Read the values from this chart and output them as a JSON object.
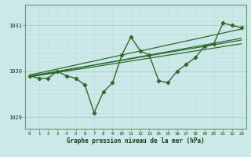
{
  "x": [
    0,
    1,
    2,
    3,
    4,
    5,
    6,
    7,
    8,
    9,
    10,
    11,
    12,
    13,
    14,
    15,
    16,
    17,
    18,
    19,
    20,
    21,
    22,
    23
  ],
  "main_line": [
    1029.9,
    1029.85,
    1029.85,
    1030.0,
    1029.9,
    1029.85,
    1029.7,
    1029.1,
    1029.55,
    1029.75,
    1030.35,
    1030.75,
    1030.45,
    1030.35,
    1029.8,
    1029.75,
    1030.0,
    1030.15,
    1030.3,
    1030.55,
    1030.6,
    1031.05,
    1031.0,
    1030.95
  ],
  "trend_lines": [
    [
      [
        0,
        23
      ],
      [
        1029.92,
        1030.92
      ]
    ],
    [
      [
        0,
        23
      ],
      [
        1029.88,
        1030.72
      ]
    ],
    [
      [
        0,
        23
      ],
      [
        1029.9,
        1030.68
      ]
    ],
    [
      [
        0,
        23
      ],
      [
        1029.88,
        1030.6
      ]
    ]
  ],
  "bg_color": "#cce8e8",
  "line_color": "#2d6a2d",
  "grid_major_color": "#aad4d4",
  "grid_minor_color": "#c0e0e0",
  "ylabel_ticks": [
    1029,
    1030,
    1031
  ],
  "xlabel": "Graphe pression niveau de la mer (hPa)",
  "ylim": [
    1028.75,
    1031.45
  ],
  "xlim": [
    -0.5,
    23.5
  ]
}
